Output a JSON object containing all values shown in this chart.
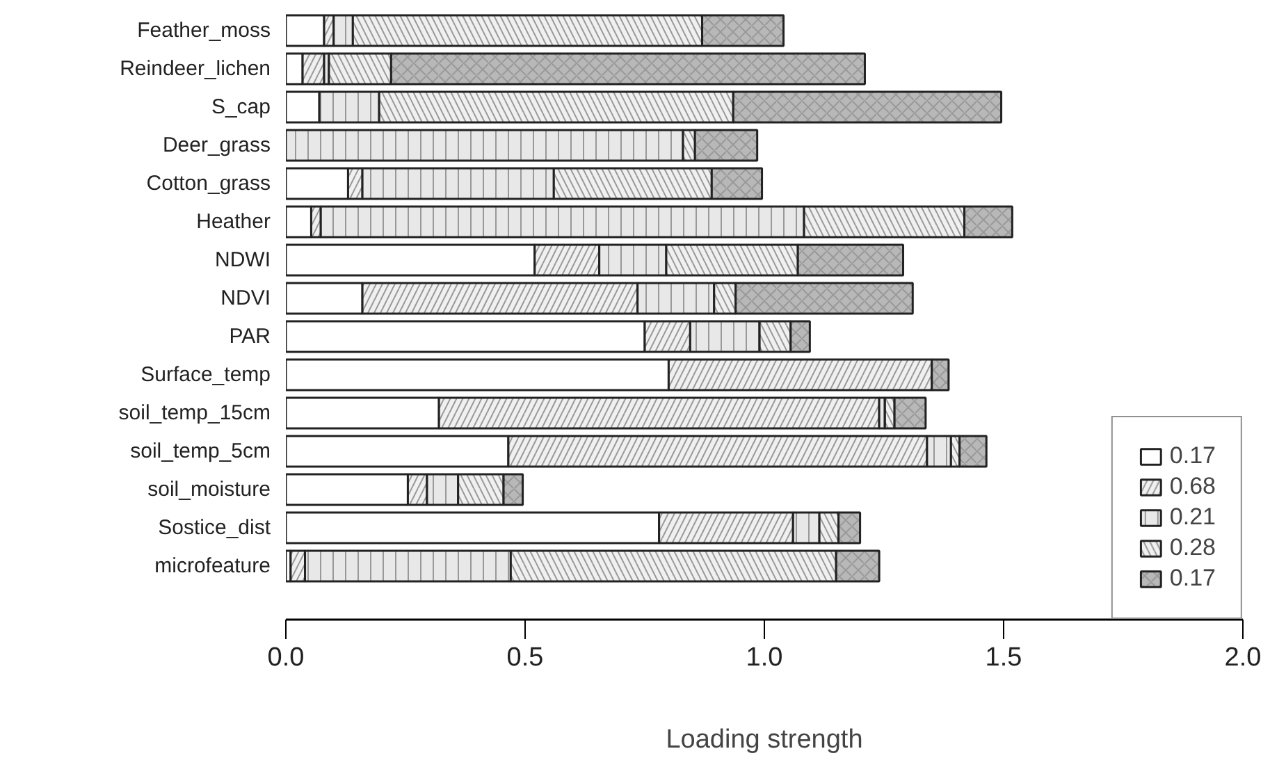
{
  "chart_data": {
    "type": "bar",
    "orientation": "horizontal",
    "stacked": true,
    "xlabel": "Loading strength",
    "categories": [
      "Feather_moss",
      "Reindeer_lichen",
      "S_cap",
      "Deer_grass",
      "Cotton_grass",
      "Heather",
      "NDWI",
      "NDVI",
      "PAR",
      "Surface_temp",
      "soil_temp_15cm",
      "soil_temp_5cm",
      "soil_moisture",
      "Sostice_dist",
      "microfeature"
    ],
    "series": [
      {
        "name": "0.17",
        "color": "#ffffff",
        "values": [
          0.08,
          0.035,
          0.07,
          null,
          0.13,
          0.053,
          0.52,
          0.16,
          0.75,
          0.8,
          0.32,
          0.465,
          0.255,
          0.78,
          0.01
        ]
      },
      {
        "name": "0.68",
        "color": "#f0f0f0",
        "values": [
          0.02,
          0.045,
          null,
          null,
          0.03,
          0.02,
          0.135,
          0.575,
          0.095,
          0.55,
          0.92,
          0.875,
          0.04,
          0.28,
          0.03
        ]
      },
      {
        "name": "0.21",
        "color": "#e8e8e8",
        "values": [
          0.04,
          0.01,
          0.125,
          0.83,
          0.4,
          1.01,
          0.14,
          0.16,
          0.145,
          null,
          0.012,
          0.05,
          0.065,
          0.055,
          0.43
        ]
      },
      {
        "name": "0.28",
        "color": "#f0f0f0",
        "values": [
          0.73,
          0.13,
          0.74,
          0.025,
          0.33,
          0.335,
          0.275,
          0.045,
          0.065,
          null,
          0.02,
          0.018,
          0.095,
          0.04,
          0.68
        ]
      },
      {
        "name": "0.17",
        "color": "#b8b8b8",
        "values": [
          0.17,
          0.99,
          0.56,
          0.13,
          0.105,
          0.1,
          0.22,
          0.37,
          0.04,
          0.035,
          0.065,
          0.056,
          0.04,
          0.045,
          0.09
        ]
      }
    ],
    "xlim": [
      0,
      2
    ],
    "xticks": [
      {
        "value": 0,
        "label": "0.0"
      },
      0.5,
      {
        "value": 1,
        "label": "1.0"
      },
      1.5,
      {
        "value": 2,
        "label": "2.0"
      }
    ],
    "legend": "bottom right",
    "grid": false
  }
}
